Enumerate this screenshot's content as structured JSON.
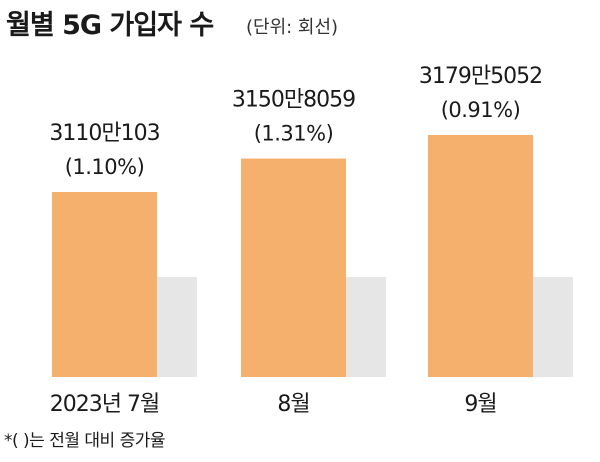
{
  "title": "월별 5G 가입자 수",
  "unit": "(단위: 회선)",
  "footnote": "*(  )는 전월 대비 증가율",
  "colors": {
    "bar": "#F5B06E",
    "shadow": "#E6E6E6"
  },
  "chart_data": {
    "type": "bar",
    "title": "월별 5G 가입자 수",
    "unit": "회선",
    "categories": [
      "2023년 7월",
      "8월",
      "9월"
    ],
    "values": [
      31100103,
      31508059,
      31795052
    ],
    "value_labels": [
      "3110만103",
      "3150만8059",
      "3179만5052"
    ],
    "growth_labels": [
      "(1.10%)",
      "(1.31%)",
      "(0.91%)"
    ],
    "growth_pct": [
      1.1,
      1.31,
      0.91
    ],
    "grid": false,
    "legend": "none"
  }
}
